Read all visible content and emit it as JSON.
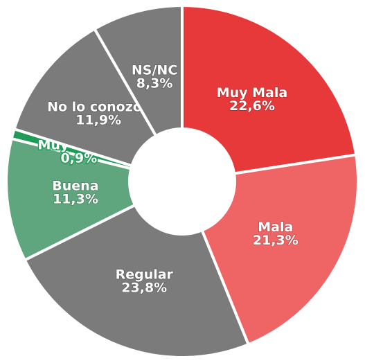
{
  "chart_data": {
    "type": "donut",
    "categories": [
      "Muy Mala",
      "Mala",
      "Regular",
      "Buena",
      "Muy Buena",
      "No lo conozco",
      "NS/NC"
    ],
    "values": [
      22.6,
      21.3,
      23.8,
      11.3,
      0.9,
      11.9,
      8.3
    ],
    "value_labels": [
      "22,6%",
      "21,3%",
      "23,8%",
      "11,3%",
      "0,9%",
      "11,9%",
      "8,3%"
    ],
    "colors": [
      "#e8393a",
      "#ef6566",
      "#7b7b7b",
      "#5fa67e",
      "#1e9b57",
      "#7b7b7b",
      "#7b7b7b"
    ]
  }
}
